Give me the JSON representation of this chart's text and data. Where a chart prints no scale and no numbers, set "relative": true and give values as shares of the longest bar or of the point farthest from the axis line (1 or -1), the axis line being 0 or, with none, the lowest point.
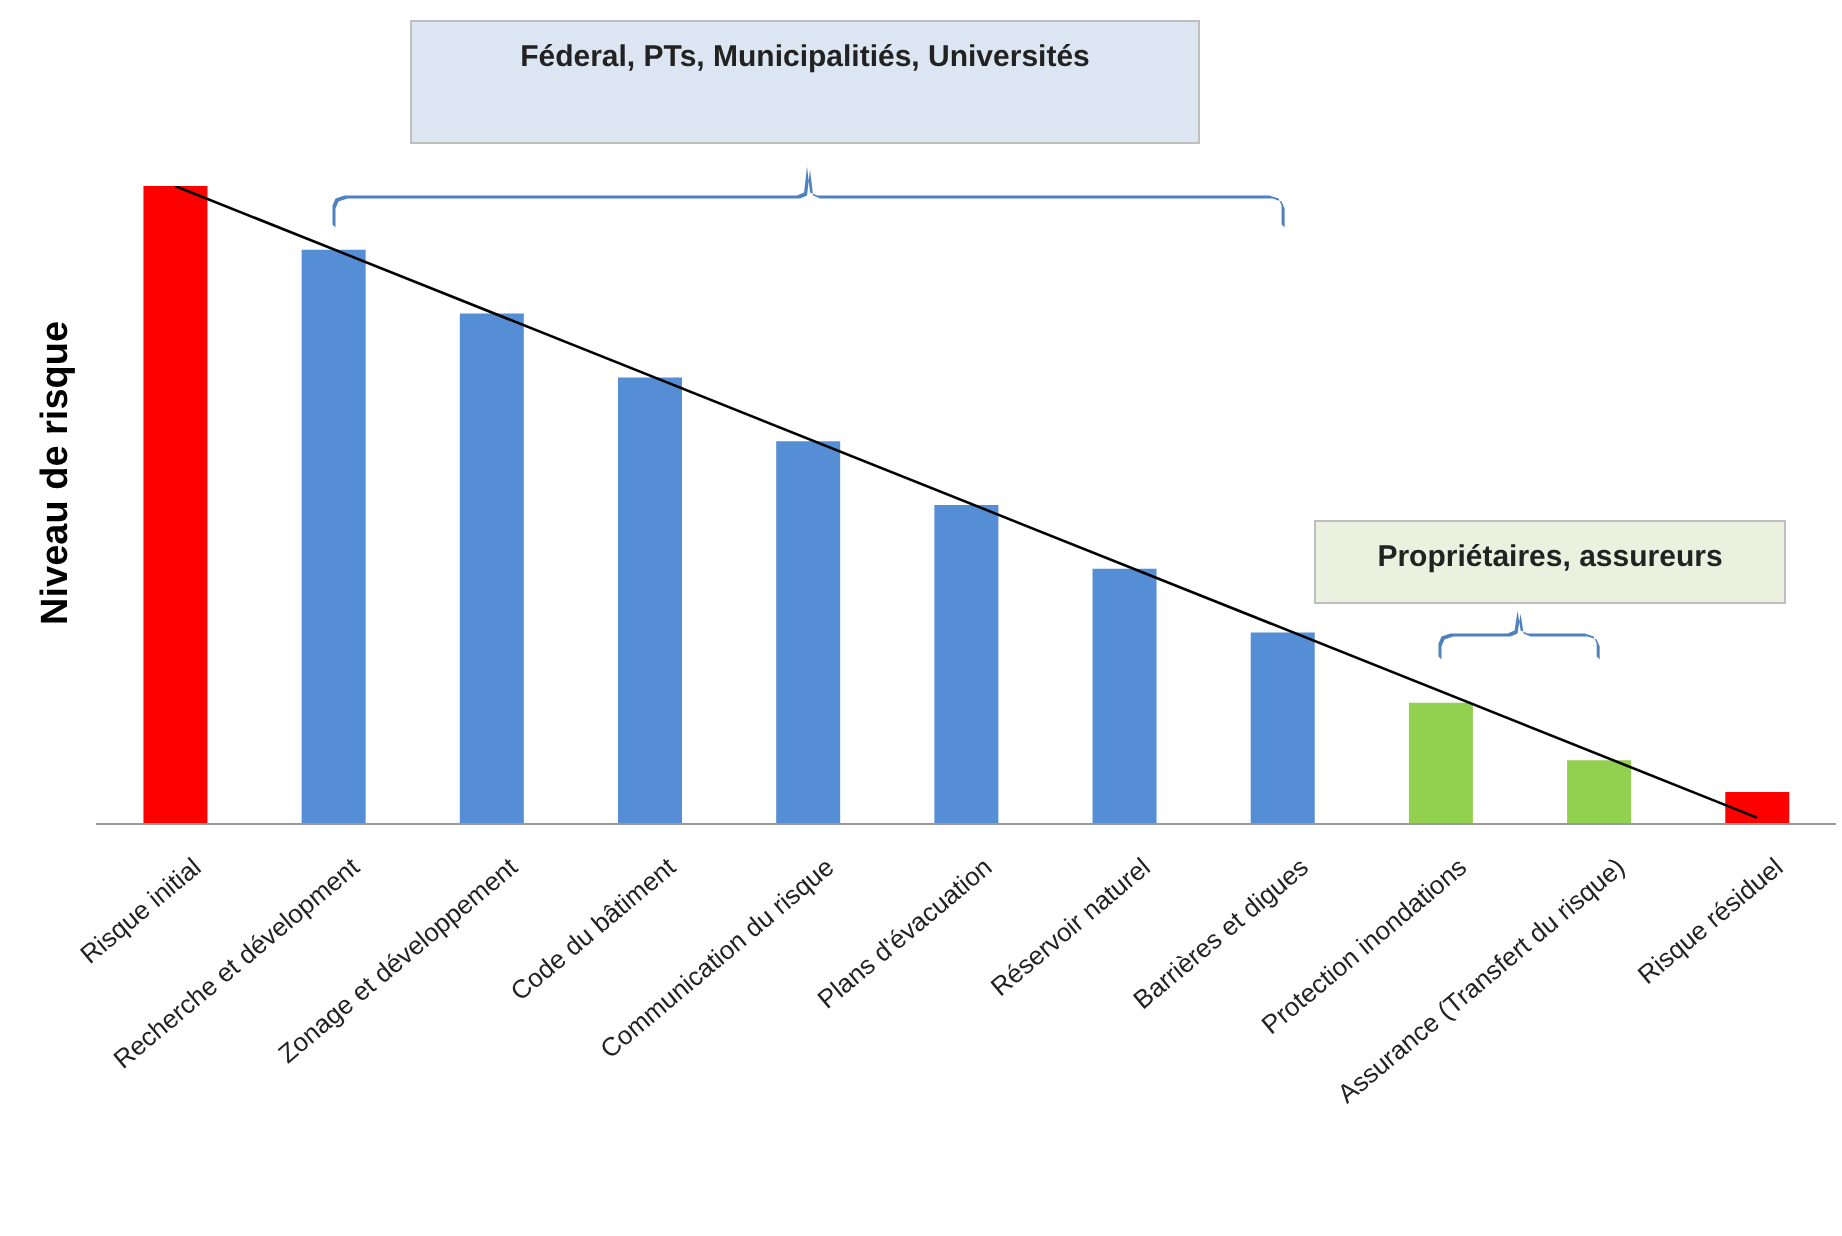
{
  "chart_data": {
    "type": "bar",
    "relative": true,
    "ylabel": "Niveau de risque",
    "categories": [
      "Risque initial",
      "Recherche et dévelopment",
      "Zonage et développement",
      "Code du bâtiment",
      "Communication du risque",
      "Plans d'évacuation",
      "Réservoir naturel",
      "Barrières et digues",
      "Protection inondations",
      "Assurance (Transfert du risque)",
      "Risque résiduel"
    ],
    "series": [
      {
        "colors": [
          "#ff0000",
          "#558ed5",
          "#558ed5",
          "#558ed5",
          "#558ed5",
          "#558ed5",
          "#558ed5",
          "#558ed5",
          "#92d050",
          "#92d050",
          "#ff0000"
        ],
        "values": [
          1,
          0.9,
          0.8,
          0.7,
          0.6,
          0.5,
          0.4,
          0.3,
          0.19,
          0.1,
          0.05
        ]
      },
      {
        "type": "line",
        "color": "#000000",
        "values": [
          1,
          null,
          null,
          null,
          null,
          null,
          null,
          null,
          null,
          null,
          0.01
        ]
      }
    ],
    "annotations": [
      "Féderal, PTs, Municipalitiés, Universités",
      "Propriétaires, assureurs"
    ],
    "grid": false,
    "legend": false
  }
}
